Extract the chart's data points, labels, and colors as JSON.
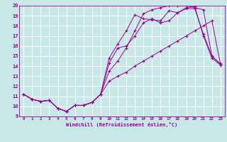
{
  "title": "",
  "xlabel": "Windchill (Refroidissement éolien,°C)",
  "ylabel": "",
  "background_color": "#c8e8e8",
  "grid_color": "#ffffff",
  "line_color": "#990099",
  "xlim": [
    -0.5,
    23.5
  ],
  "ylim": [
    9,
    20
  ],
  "xticks": [
    0,
    1,
    2,
    3,
    4,
    5,
    6,
    7,
    8,
    9,
    10,
    11,
    12,
    13,
    14,
    15,
    16,
    17,
    18,
    19,
    20,
    21,
    22,
    23
  ],
  "yticks": [
    9,
    10,
    11,
    12,
    13,
    14,
    15,
    16,
    17,
    18,
    19,
    20
  ],
  "line1_x": [
    0,
    1,
    2,
    3,
    4,
    5,
    6,
    7,
    8,
    9,
    10,
    11,
    12,
    13,
    14,
    15,
    16,
    17,
    18,
    19,
    20,
    21,
    22,
    23
  ],
  "line1_y": [
    11.2,
    10.7,
    10.5,
    10.6,
    9.8,
    9.5,
    10.1,
    10.1,
    10.4,
    11.2,
    14.3,
    15.8,
    16.0,
    17.0,
    18.3,
    18.7,
    18.3,
    18.5,
    19.3,
    19.7,
    19.7,
    17.2,
    15.0,
    14.2
  ],
  "line2_x": [
    0,
    1,
    2,
    3,
    4,
    5,
    6,
    7,
    8,
    9,
    10,
    11,
    12,
    13,
    14,
    15,
    16,
    17,
    18,
    19,
    20,
    21,
    22,
    23
  ],
  "line2_y": [
    11.2,
    10.7,
    10.5,
    10.6,
    9.8,
    9.5,
    10.1,
    10.1,
    10.4,
    11.2,
    14.8,
    16.2,
    17.5,
    19.1,
    18.7,
    18.6,
    18.5,
    19.5,
    19.3,
    19.8,
    19.9,
    17.0,
    14.8,
    14.1
  ],
  "line3_x": [
    0,
    1,
    2,
    3,
    4,
    5,
    6,
    7,
    8,
    9,
    10,
    11,
    12,
    13,
    14,
    15,
    16,
    17,
    18,
    19,
    20,
    21,
    22,
    23
  ],
  "line3_y": [
    11.2,
    10.7,
    10.5,
    10.6,
    9.8,
    9.5,
    10.1,
    10.1,
    10.4,
    11.2,
    12.5,
    13.0,
    13.4,
    14.0,
    14.5,
    15.0,
    15.5,
    16.0,
    16.5,
    17.0,
    17.5,
    18.0,
    18.5,
    14.2
  ],
  "line4_x": [
    0,
    1,
    2,
    3,
    4,
    5,
    6,
    7,
    8,
    9,
    10,
    11,
    12,
    13,
    14,
    15,
    16,
    17,
    18,
    19,
    20,
    21,
    22,
    23
  ],
  "line4_y": [
    11.2,
    10.7,
    10.5,
    10.6,
    9.8,
    9.5,
    10.1,
    10.1,
    10.4,
    11.2,
    13.5,
    14.5,
    15.8,
    17.5,
    19.2,
    19.6,
    19.8,
    20.0,
    20.0,
    20.0,
    19.8,
    19.6,
    15.0,
    14.2
  ]
}
